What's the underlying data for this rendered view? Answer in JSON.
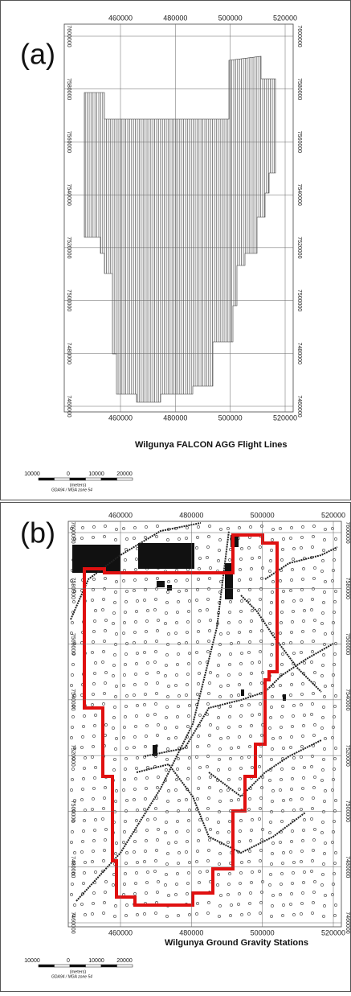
{
  "panels": [
    {
      "label": "(a)",
      "title": "Wilgunya FALCON AGG Flight Lines",
      "xticks": [
        460000,
        480000,
        500000,
        520000
      ],
      "yticks": [
        7600000,
        7580000,
        7560000,
        7540000,
        7520000,
        7500000,
        7480000,
        7460000
      ],
      "scale_labels": [
        10000,
        0,
        10000,
        20000
      ],
      "units": "(meters)",
      "projection": "GDA94 / MGA zone 54"
    },
    {
      "label": "(b)",
      "title": "Wilgunya Ground Gravity Stations",
      "xticks": [
        460000,
        480000,
        500000,
        520000
      ],
      "yticks": [
        7600000,
        7580000,
        7560000,
        7540000,
        7520000,
        7500000,
        7480000,
        7460000
      ],
      "scale_labels": [
        10000,
        0,
        10000,
        20000
      ],
      "units": "(meters)",
      "projection": "GDA94 / MGA zone 54"
    }
  ]
}
